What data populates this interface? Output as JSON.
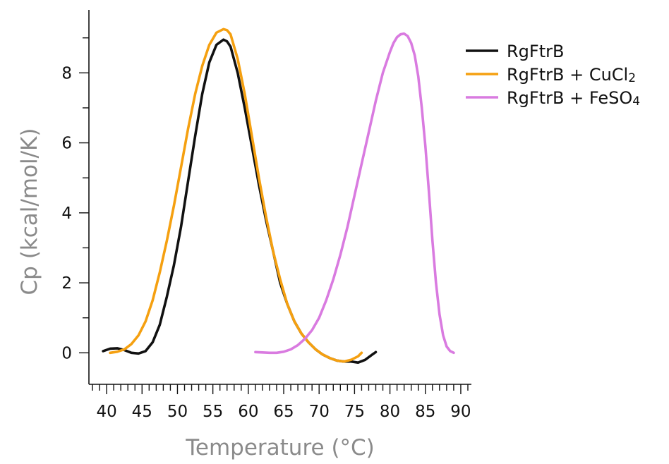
{
  "chart_data": {
    "type": "line",
    "title": "",
    "xlabel": "Temperature (°C)",
    "ylabel": "Cp (kcal/mol/K)",
    "xlim": [
      37.5,
      91.5
    ],
    "ylim": [
      -0.9,
      9.8
    ],
    "x_major_ticks": [
      40,
      45,
      50,
      55,
      60,
      65,
      70,
      75,
      80,
      85,
      90
    ],
    "x_minor_step": 1,
    "y_major_ticks": [
      0,
      2,
      4,
      6,
      8
    ],
    "y_minor_step": 1,
    "x_tick_labels": [
      "40",
      "45",
      "50",
      "55",
      "60",
      "65",
      "70",
      "75",
      "80",
      "85",
      "90"
    ],
    "y_tick_labels": [
      "0",
      "2",
      "4",
      "6",
      "8"
    ],
    "grid": false,
    "legend": {
      "position": "top-right",
      "entries": [
        {
          "label": "RgFtrB",
          "sub": ""
        },
        {
          "label": "RgFtrB + CuCl",
          "sub": "2"
        },
        {
          "label": "RgFtrB + FeSO",
          "sub": "4"
        }
      ]
    },
    "series": [
      {
        "color": "#111111",
        "x": [
          39.5,
          40.5,
          41.5,
          42.5,
          43.5,
          44.5,
          45.5,
          46.5,
          47.5,
          48.5,
          49.5,
          50.5,
          51.5,
          52.5,
          53.5,
          54.5,
          55.5,
          56.5,
          57.0,
          57.5,
          58.5,
          59.5,
          60.5,
          61.5,
          62.5,
          63.5,
          64.5,
          65.5,
          66.5,
          67.5,
          68.5,
          69.5,
          70.5,
          71.5,
          72.5,
          73.5,
          74.5,
          75.5,
          76.5,
          77.5,
          78.0
        ],
        "y": [
          0.05,
          0.12,
          0.13,
          0.08,
          0.0,
          -0.02,
          0.05,
          0.3,
          0.8,
          1.6,
          2.5,
          3.6,
          4.9,
          6.2,
          7.4,
          8.3,
          8.8,
          8.95,
          8.9,
          8.75,
          8.0,
          7.0,
          5.9,
          4.8,
          3.8,
          2.9,
          2.0,
          1.4,
          0.9,
          0.55,
          0.3,
          0.1,
          -0.05,
          -0.15,
          -0.22,
          -0.25,
          -0.25,
          -0.28,
          -0.2,
          -0.05,
          0.02
        ]
      },
      {
        "color": "#f5a010",
        "x": [
          40.5,
          41.5,
          42.5,
          43.5,
          44.5,
          45.5,
          46.5,
          47.5,
          48.5,
          49.5,
          50.5,
          51.5,
          52.5,
          53.5,
          54.5,
          55.5,
          56.5,
          57.0,
          57.5,
          58.5,
          59.5,
          60.5,
          61.5,
          62.5,
          63.5,
          64.5,
          65.5,
          66.5,
          67.5,
          68.5,
          69.5,
          70.5,
          71.5,
          72.5,
          73.5,
          74.5,
          75.5,
          76.0
        ],
        "y": [
          0.0,
          0.03,
          0.1,
          0.25,
          0.5,
          0.9,
          1.5,
          2.3,
          3.2,
          4.2,
          5.3,
          6.4,
          7.4,
          8.2,
          8.8,
          9.15,
          9.25,
          9.22,
          9.1,
          8.4,
          7.4,
          6.2,
          5.0,
          3.9,
          2.9,
          2.1,
          1.4,
          0.9,
          0.55,
          0.3,
          0.1,
          -0.05,
          -0.15,
          -0.22,
          -0.25,
          -0.2,
          -0.1,
          0.0
        ]
      },
      {
        "color": "#d97be0",
        "x": [
          61.0,
          62.0,
          63.0,
          64.0,
          65.0,
          66.0,
          67.0,
          68.0,
          69.0,
          70.0,
          71.0,
          72.0,
          73.0,
          74.0,
          75.0,
          76.0,
          77.0,
          78.0,
          79.0,
          80.0,
          80.5,
          81.0,
          81.5,
          82.0,
          82.5,
          83.0,
          83.5,
          84.0,
          84.5,
          85.0,
          85.5,
          86.0,
          86.5,
          87.0,
          87.5,
          88.0,
          88.5,
          89.0
        ],
        "y": [
          0.02,
          0.01,
          0.0,
          0.0,
          0.03,
          0.1,
          0.22,
          0.4,
          0.65,
          1.0,
          1.5,
          2.1,
          2.8,
          3.6,
          4.5,
          5.4,
          6.3,
          7.2,
          8.0,
          8.6,
          8.85,
          9.02,
          9.1,
          9.12,
          9.05,
          8.85,
          8.5,
          7.9,
          7.0,
          5.9,
          4.6,
          3.2,
          2.0,
          1.1,
          0.5,
          0.18,
          0.05,
          0.0
        ]
      }
    ]
  }
}
